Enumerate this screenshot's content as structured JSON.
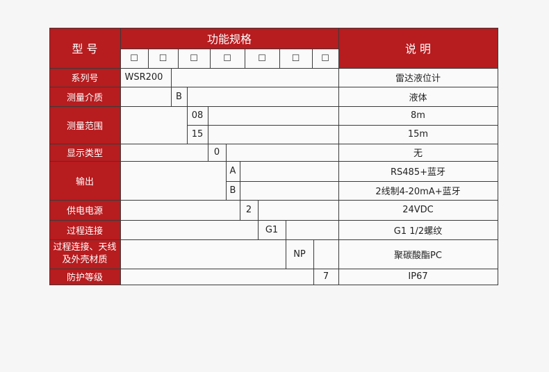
{
  "header": {
    "model": "型 号",
    "spec": "功能规格",
    "desc": "说 明",
    "checkbox_glyph": "☐"
  },
  "rows": [
    {
      "label": "系列号",
      "codes": [
        "WSR200"
      ],
      "descs": [
        "雷达液位计"
      ]
    },
    {
      "label": "测量介质",
      "codes": [
        "B"
      ],
      "descs": [
        "液体"
      ]
    },
    {
      "label": "测量范围",
      "codes": [
        "08",
        "15"
      ],
      "descs": [
        "8m",
        "15m"
      ]
    },
    {
      "label": "显示类型",
      "codes": [
        "0"
      ],
      "descs": [
        "无"
      ]
    },
    {
      "label": "输出",
      "codes": [
        "A",
        "B"
      ],
      "descs": [
        "RS485+蓝牙",
        "2线制4-20mA+蓝牙"
      ]
    },
    {
      "label": "供电电源",
      "codes": [
        "2"
      ],
      "descs": [
        "24VDC"
      ]
    },
    {
      "label": "过程连接",
      "codes": [
        "G1"
      ],
      "descs": [
        "G1 1/2螺纹"
      ]
    },
    {
      "label": "过程连接、天线\n及外壳材质",
      "codes": [
        "NP"
      ],
      "descs": [
        "聚碳酸酯PC"
      ]
    },
    {
      "label": "防护等级",
      "codes": [
        "7"
      ],
      "descs": [
        "IP67"
      ]
    }
  ],
  "colors": {
    "header_red": "#b71c1f",
    "border": "#3a3a3a"
  }
}
